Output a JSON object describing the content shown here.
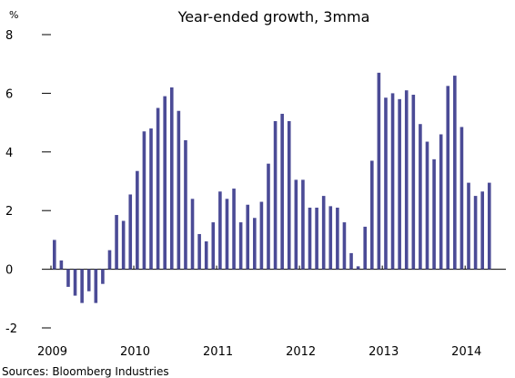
{
  "chart_data": {
    "type": "bar",
    "title": "Year-ended growth, 3mma",
    "unit_label": "%",
    "source": "Sources: Bloomberg Industries",
    "ylim": [
      -2,
      8
    ],
    "yticks": [
      -2,
      0,
      2,
      4,
      6,
      8
    ],
    "x_tick_labels": [
      "2009",
      "2010",
      "2011",
      "2012",
      "2013",
      "2014"
    ],
    "bar_color": "#4B4B96",
    "grid": false,
    "series": [
      {
        "values": [
          1.0,
          0.3,
          -0.6,
          -0.9,
          -1.15,
          -0.75,
          -1.15,
          -0.5,
          0.65,
          1.85,
          1.65,
          2.55,
          3.35,
          4.7,
          4.8,
          5.5,
          5.9,
          6.2,
          5.4,
          4.4,
          2.4,
          1.2,
          0.95,
          1.6,
          2.65,
          2.4,
          2.75,
          1.6,
          2.2,
          1.75,
          2.3,
          3.6,
          5.05,
          5.3,
          5.05,
          3.05,
          3.05,
          2.1,
          2.1,
          2.5,
          2.15,
          2.1,
          1.6,
          0.55,
          0.1,
          1.45,
          3.7,
          6.7,
          5.85,
          6.0,
          5.8,
          6.1,
          5.95,
          4.95,
          4.35,
          3.75,
          4.6,
          6.25,
          6.6,
          4.85,
          2.95,
          2.5,
          2.65,
          2.95
        ]
      }
    ]
  }
}
